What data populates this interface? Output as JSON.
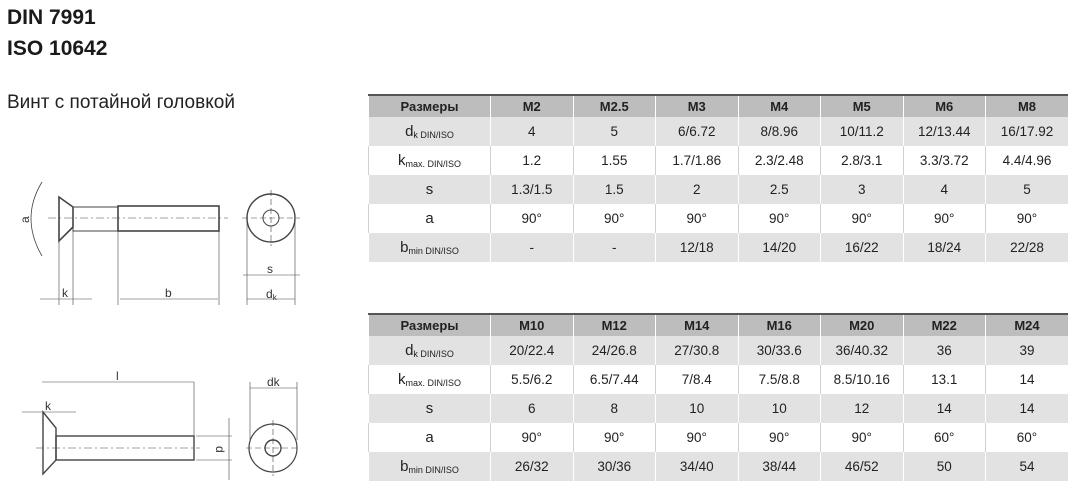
{
  "title_line1": "DIN 7991",
  "title_line2": "ISO 10642",
  "subtitle": "Винт с потайной головкой",
  "drawing_labels": {
    "a": "a",
    "k": "k",
    "b": "b",
    "s": "s",
    "dk_top": "d",
    "dk_top_sub": "k",
    "l": "l",
    "k2": "k",
    "dk": "dk",
    "d": "d"
  },
  "tables": [
    {
      "header": [
        "Размеры",
        "M2",
        "M2.5",
        "M3",
        "M4",
        "M5",
        "M6",
        "M8"
      ],
      "rows": [
        {
          "sym": "d",
          "sub": "k DIN/ISO",
          "values": [
            "4",
            "5",
            "6/6.72",
            "8/8.96",
            "10/11.2",
            "12/13.44",
            "16/17.92"
          ]
        },
        {
          "sym": "k",
          "sub": "max. DIN/ISO",
          "values": [
            "1.2",
            "1.55",
            "1.7/1.86",
            "2.3/2.48",
            "2.8/3.1",
            "3.3/3.72",
            "4.4/4.96"
          ]
        },
        {
          "sym": "s",
          "sub": "",
          "values": [
            "1.3/1.5",
            "1.5",
            "2",
            "2.5",
            "3",
            "4",
            "5"
          ]
        },
        {
          "sym": "a",
          "sub": "",
          "values": [
            "90°",
            "90°",
            "90°",
            "90°",
            "90°",
            "90°",
            "90°"
          ]
        },
        {
          "sym": "b",
          "sub": "min DIN/ISO",
          "values": [
            "-",
            "-",
            "12/18",
            "14/20",
            "16/22",
            "18/24",
            "22/28"
          ]
        }
      ]
    },
    {
      "header": [
        "Размеры",
        "M10",
        "M12",
        "M14",
        "M16",
        "M20",
        "M22",
        "M24"
      ],
      "rows": [
        {
          "sym": "d",
          "sub": "k DIN/ISO",
          "values": [
            "20/22.4",
            "24/26.8",
            "27/30.8",
            "30/33.6",
            "36/40.32",
            "36",
            "39"
          ]
        },
        {
          "sym": "k",
          "sub": "max. DIN/ISO",
          "values": [
            "5.5/6.2",
            "6.5/7.44",
            "7/8.4",
            "7.5/8.8",
            "8.5/10.16",
            "13.1",
            "14"
          ]
        },
        {
          "sym": "s",
          "sub": "",
          "values": [
            "6",
            "8",
            "10",
            "10",
            "12",
            "14",
            "14"
          ]
        },
        {
          "sym": "a",
          "sub": "",
          "values": [
            "90°",
            "90°",
            "90°",
            "90°",
            "90°",
            "60°",
            "60°"
          ]
        },
        {
          "sym": "b",
          "sub": "min DIN/ISO",
          "values": [
            "26/32",
            "30/36",
            "34/40",
            "38/44",
            "46/52",
            "50",
            "54"
          ]
        }
      ]
    }
  ]
}
